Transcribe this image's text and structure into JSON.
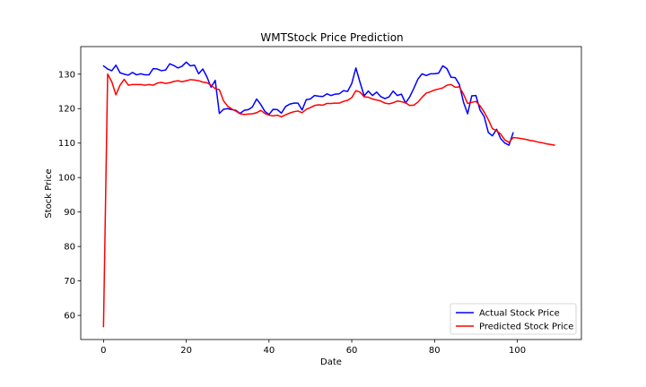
{
  "chart_data": {
    "type": "line",
    "title": "WMTStock Price Prediction",
    "xlabel": "Date",
    "ylabel": "Stock Price",
    "xlim": [
      -5.5,
      115.5
    ],
    "ylim": [
      53,
      138
    ],
    "xticks": [
      0,
      20,
      40,
      60,
      80,
      100
    ],
    "yticks": [
      60,
      70,
      80,
      90,
      100,
      110,
      120,
      130
    ],
    "grid": false,
    "legend_position": "lower-right",
    "series": [
      {
        "name": "Actual Stock Price",
        "color": "#0000ff",
        "x": [
          0,
          1,
          2,
          3,
          4,
          5,
          6,
          7,
          8,
          9,
          10,
          11,
          12,
          13,
          14,
          15,
          16,
          17,
          18,
          19,
          20,
          21,
          22,
          23,
          24,
          25,
          26,
          27,
          28,
          29,
          30,
          31,
          32,
          33,
          34,
          35,
          36,
          37,
          38,
          39,
          40,
          41,
          42,
          43,
          44,
          45,
          46,
          47,
          48,
          49,
          50,
          51,
          52,
          53,
          54,
          55,
          56,
          57,
          58,
          59,
          60,
          61,
          62,
          63,
          64,
          65,
          66,
          67,
          68,
          69,
          70,
          71,
          72,
          73,
          74,
          75,
          76,
          77,
          78,
          79,
          80,
          81,
          82,
          83,
          84,
          85,
          86,
          87,
          88,
          89,
          90,
          91,
          92,
          93,
          94,
          95,
          96,
          97,
          98,
          99
        ],
        "y": [
          132.4,
          131.5,
          131,
          132.6,
          130.4,
          130,
          129.7,
          130.5,
          129.8,
          130.1,
          129.8,
          129.8,
          131.6,
          131.5,
          131,
          131.2,
          133,
          132.5,
          131.8,
          132.3,
          133.5,
          132.4,
          132.6,
          130.1,
          131.5,
          129.2,
          126.2,
          128.2,
          118.6,
          119.8,
          120.0,
          119.7,
          119.5,
          118.6,
          119.5,
          119.7,
          120.5,
          122.8,
          121.2,
          119.2,
          118.3,
          119.8,
          119.7,
          118.7,
          120.6,
          121.3,
          121.6,
          121.6,
          119.6,
          122.6,
          122.8,
          123.8,
          123.6,
          123.5,
          124.3,
          123.8,
          124.2,
          124.3,
          125.2,
          125,
          127.3,
          131.8,
          127.6,
          123.7,
          125.1,
          123.8,
          124.8,
          123.5,
          122.9,
          123.4,
          125.1,
          123.8,
          124.2,
          121.6,
          123.4,
          125.9,
          128.6,
          130.1,
          129.6,
          130.1,
          130.1,
          130.3,
          132.4,
          131.6,
          129.1,
          129,
          127,
          121.9,
          118.5,
          123.7,
          123.8,
          119.6,
          117.7,
          113.1,
          112.1,
          114,
          111.3,
          110,
          109.4,
          113
        ]
      },
      {
        "name": "Predicted Stock Price",
        "color": "#ff0000",
        "x": [
          0,
          1,
          2,
          3,
          4,
          5,
          6,
          7,
          8,
          9,
          10,
          11,
          12,
          13,
          14,
          15,
          16,
          17,
          18,
          19,
          20,
          21,
          22,
          23,
          24,
          25,
          26,
          27,
          28,
          29,
          30,
          31,
          32,
          33,
          34,
          35,
          36,
          37,
          38,
          39,
          40,
          41,
          42,
          43,
          44,
          45,
          46,
          47,
          48,
          49,
          50,
          51,
          52,
          53,
          54,
          55,
          56,
          57,
          58,
          59,
          60,
          61,
          62,
          63,
          64,
          65,
          66,
          67,
          68,
          69,
          70,
          71,
          72,
          73,
          74,
          75,
          76,
          77,
          78,
          79,
          80,
          81,
          82,
          83,
          84,
          85,
          86,
          87,
          88,
          89,
          90,
          91,
          92,
          93,
          94,
          95,
          96,
          97,
          98,
          99,
          100,
          101,
          102,
          103,
          104,
          105,
          106,
          107,
          108,
          109
        ],
        "y": [
          56.7,
          130,
          127.8,
          124,
          126.8,
          128.5,
          126.8,
          127,
          127,
          127,
          126.8,
          127,
          126.8,
          127.4,
          127.6,
          127.3,
          127.5,
          127.9,
          128.1,
          127.8,
          128.1,
          128.4,
          128.3,
          128.1,
          127.7,
          127.5,
          126.8,
          125.8,
          125.5,
          122.3,
          120.7,
          119.9,
          119.3,
          118.5,
          118.3,
          118.4,
          118.5,
          118.8,
          119.5,
          118.6,
          118.1,
          117.9,
          118.1,
          117.6,
          118.2,
          118.7,
          119.1,
          119.3,
          118.8,
          119.8,
          120.3,
          120.9,
          121.1,
          121.0,
          121.5,
          121.5,
          121.6,
          121.6,
          122.1,
          122.4,
          123.2,
          125.2,
          124.8,
          123.4,
          123.3,
          122.8,
          122.5,
          122.2,
          121.6,
          121.4,
          121.7,
          122.2,
          122.0,
          121.7,
          120.9,
          121.0,
          121.9,
          123.3,
          124.5,
          124.9,
          125.4,
          125.7,
          126.0,
          126.8,
          127.0,
          126.2,
          126.3,
          124.2,
          121.5,
          121.8,
          122.1,
          120.8,
          119.0,
          116.8,
          114.2,
          113.6,
          112.6,
          110.9,
          110.2,
          111.6,
          111.5,
          111.3,
          111.1,
          110.8,
          110.6,
          110.3,
          110.1,
          109.8,
          109.6,
          109.4
        ]
      }
    ]
  }
}
